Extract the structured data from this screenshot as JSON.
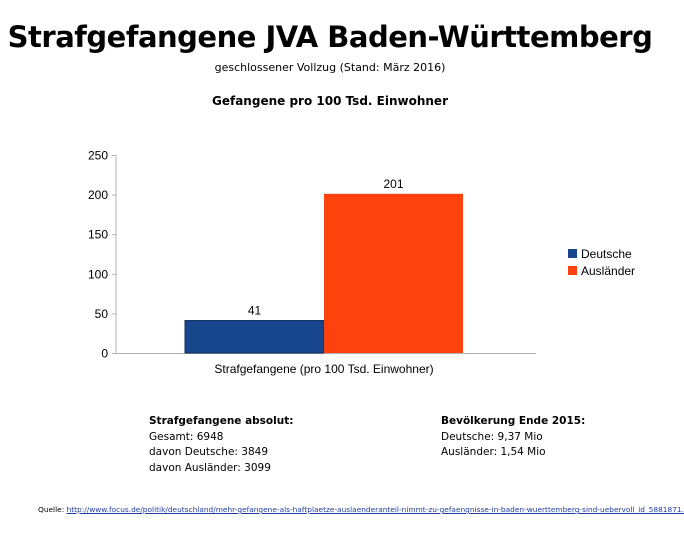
{
  "header": {
    "title": "Strafgefangene JVA Baden-Württemberg",
    "subtitle": "geschlossener Vollzug (Stand: März 2016)",
    "chart_title": "Gefangene pro 100 Tsd. Einwohner"
  },
  "chart_data": {
    "type": "bar",
    "title": "Gefangene pro 100 Tsd. Einwohner",
    "categories": [
      "Strafgefangene (pro 100 Tsd. Einwohner)"
    ],
    "series": [
      {
        "name": "Deutsche",
        "values": [
          41
        ],
        "color": "#17468c"
      },
      {
        "name": "Ausländer",
        "values": [
          201
        ],
        "color": "#fe420e"
      }
    ],
    "ylim": [
      0,
      250
    ],
    "yticks": [
      0,
      50,
      100,
      150,
      200,
      250
    ],
    "grid": false,
    "legend_position": "right",
    "xlabel": "",
    "ylabel": ""
  },
  "legend": {
    "items": [
      {
        "label": "Deutsche",
        "color": "#17468c"
      },
      {
        "label": "Ausländer",
        "color": "#fe420e"
      }
    ]
  },
  "info_left": {
    "heading": "Strafgefangene absolut:",
    "lines": [
      "Gesamt: 6948",
      "davon Deutsche: 3849",
      "davon Ausländer: 3099"
    ]
  },
  "info_right": {
    "heading": "Bevölkerung Ende 2015:",
    "lines": [
      "Deutsche: 9,37 Mio",
      "Ausländer: 1,54 Mio"
    ]
  },
  "source": {
    "label": "Quelle:",
    "url": "http://www.focus.de/politik/deutschland/mehr-gefangene-als-haftplaetze-auslaenderanteil-nimmt-zu-gefaengnisse-in-baden-wuerttemberg-sind-uebervoll_id_5881871.html"
  }
}
